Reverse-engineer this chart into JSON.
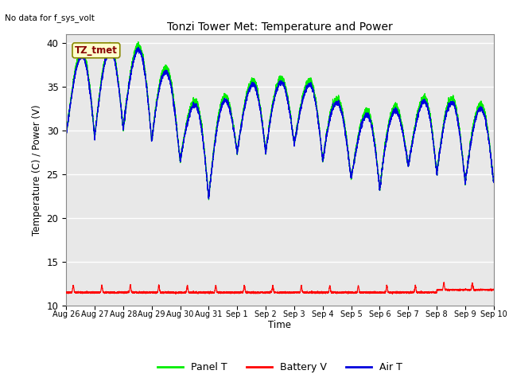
{
  "title": "Tonzi Tower Met: Temperature and Power",
  "ylabel": "Temperature (C) / Power (V)",
  "xlabel": "Time",
  "no_data_text": "No data for f_sys_volt",
  "annotation_text": "TZ_tmet",
  "ylim": [
    10,
    41
  ],
  "yticks": [
    10,
    15,
    20,
    25,
    30,
    35,
    40
  ],
  "panel_color": "#00EE00",
  "battery_color": "#FF0000",
  "air_color": "#0000DD",
  "background_color": "#E8E8E8",
  "legend_labels": [
    "Panel T",
    "Battery V",
    "Air T"
  ],
  "xtick_labels": [
    "Aug 26",
    "Aug 27",
    "Aug 28",
    "Aug 29",
    "Aug 30",
    "Aug 31",
    "Sep 1",
    "Sep 2",
    "Sep 3",
    "Sep 4",
    "Sep 5",
    "Sep 6",
    "Sep 7",
    "Sep 8",
    "Sep 9",
    "Sep 10"
  ],
  "xtick_positions": [
    0,
    1,
    2,
    3,
    4,
    5,
    6,
    7,
    8,
    9,
    10,
    11,
    12,
    13,
    14,
    15
  ]
}
